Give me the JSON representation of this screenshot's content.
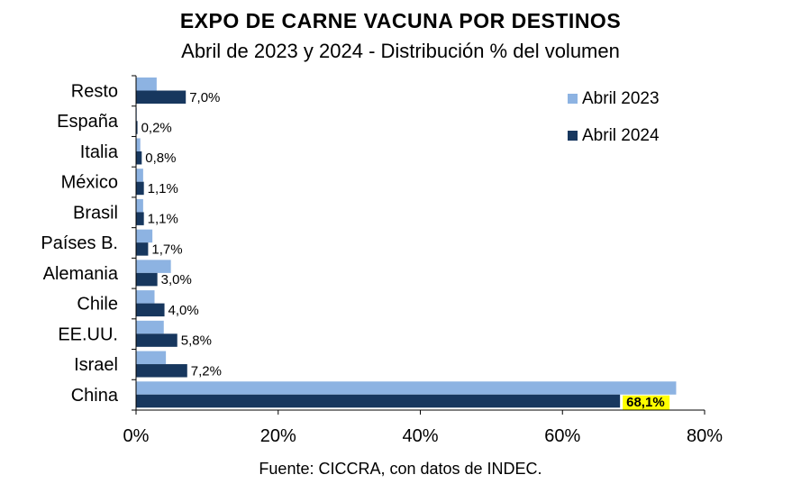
{
  "chart_data": {
    "type": "bar",
    "orientation": "horizontal",
    "title": "EXPO DE CARNE VACUNA POR DESTINOS",
    "subtitle": "Abril de 2023 y 2024 - Distribución % del volumen",
    "source": "Fuente: CICCRA, con datos de INDEC.",
    "categories": [
      "Resto",
      "España",
      "Italia",
      "México",
      "Brasil",
      "Países B.",
      "Alemania",
      "Chile",
      "EE.UU.",
      "Israel",
      "China"
    ],
    "series": [
      {
        "name": "Abril 2023",
        "color": "#8db3e2",
        "values": [
          2.9,
          0.1,
          0.6,
          1.0,
          1.0,
          2.3,
          4.9,
          2.6,
          3.9,
          4.2,
          76.0
        ]
      },
      {
        "name": "Abril 2024",
        "color": "#17375e",
        "values": [
          7.0,
          0.2,
          0.8,
          1.1,
          1.1,
          1.7,
          3.0,
          4.0,
          5.8,
          7.2,
          68.1
        ]
      }
    ],
    "data_labels": [
      "7,0%",
      "0,2%",
      "0,8%",
      "1,1%",
      "1,1%",
      "1,7%",
      "3,0%",
      "4,0%",
      "5,8%",
      "7,2%",
      "68,1%"
    ],
    "highlighted_label": {
      "text": "68,1%",
      "background": "#ffff00"
    },
    "x_ticks": [
      "0%",
      "20%",
      "40%",
      "60%",
      "80%"
    ],
    "xlim": [
      0,
      80
    ],
    "legend_position": "top-right",
    "grid": false
  }
}
